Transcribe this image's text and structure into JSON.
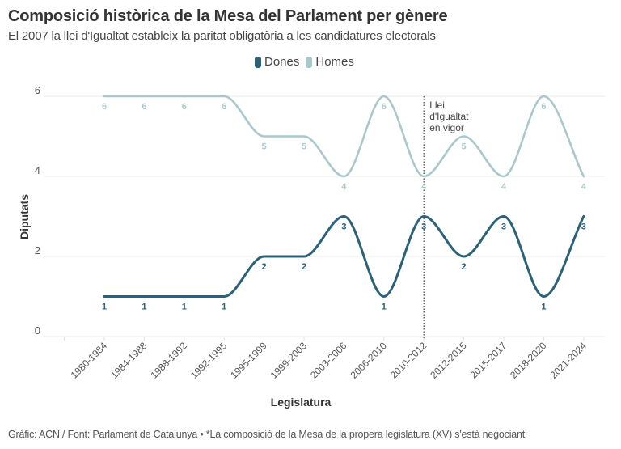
{
  "header": {
    "title": "Composició històrica de la Mesa del Parlament per gènere",
    "subtitle": "El 2007 la llei d'Igualtat estableix la paritat obligatòria a les candidatures electorals"
  },
  "legend": {
    "items": [
      {
        "label": "Dones",
        "color": "#2b6179"
      },
      {
        "label": "Homes",
        "color": "#a9c8cc"
      }
    ]
  },
  "footer": {
    "text": "Gràfic: ACN / Font: Parlament de Catalunya • *La composició de la Mesa de la propera legislatura (XV) s'està negociant"
  },
  "chart_data": {
    "type": "line",
    "title": "Composició històrica de la Mesa del Parlament per gènere",
    "subtitle": "El 2007 la llei d'Igualtat estableix la paritat obligatòria a les candidatures electorals",
    "xlabel": "Legislatura",
    "ylabel": "Diputats",
    "ylim": [
      0,
      6
    ],
    "yticks": [
      0,
      2,
      4,
      6
    ],
    "grid": true,
    "legend_position": "top-center",
    "categories": [
      "1980-1984",
      "1984-1988",
      "1988-1992",
      "1992-1995",
      "1995-1999",
      "1999-2003",
      "2003-2006",
      "2006-2010",
      "2010-2012",
      "2012-2015",
      "2015-2017",
      "2018-2020",
      "2021-2024"
    ],
    "series": [
      {
        "name": "Dones",
        "color": "#2b6179",
        "values": [
          1,
          1,
          1,
          1,
          2,
          2,
          3,
          1,
          3,
          2,
          3,
          1,
          3
        ]
      },
      {
        "name": "Homes",
        "color": "#a9c8cc",
        "values": [
          6,
          6,
          6,
          6,
          5,
          5,
          4,
          6,
          4,
          5,
          4,
          6,
          4
        ]
      }
    ],
    "annotations": [
      {
        "category": "2010-2012",
        "lines": [
          "Llei",
          "d'Igualtat",
          "en vigor"
        ]
      }
    ]
  }
}
